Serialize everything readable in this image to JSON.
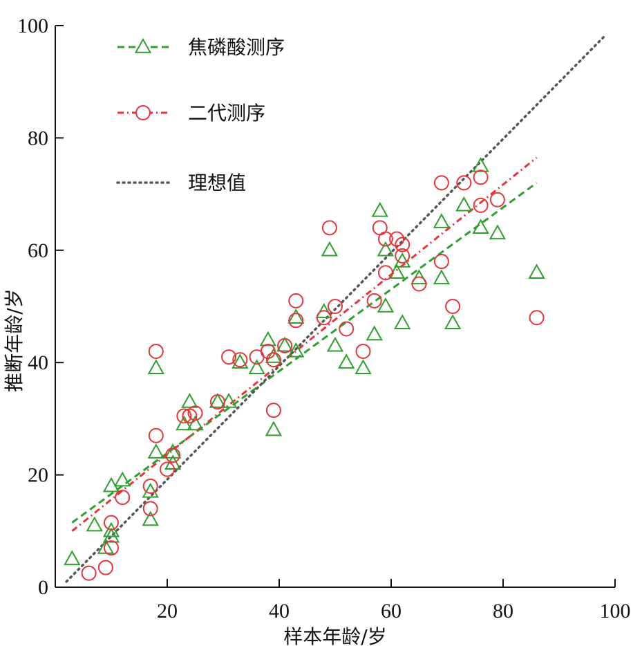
{
  "chart_data": {
    "type": "scatter",
    "xlabel": "样本年龄/岁",
    "ylabel": "推断年龄/岁",
    "xlim": [
      0,
      100
    ],
    "ylim": [
      0,
      100
    ],
    "xticks": [
      0,
      20,
      40,
      60,
      80,
      100
    ],
    "yticks": [
      0,
      20,
      40,
      60,
      80,
      100
    ],
    "grid": false,
    "legend_position": "top-left",
    "series": [
      {
        "name": "焦磷酸测序",
        "marker": "triangle",
        "color": "#2ca02c",
        "line_style": "dashed",
        "points": [
          [
            3,
            5
          ],
          [
            7,
            11
          ],
          [
            9,
            7
          ],
          [
            10,
            9
          ],
          [
            10,
            10
          ],
          [
            10,
            18
          ],
          [
            12,
            19
          ],
          [
            17,
            12
          ],
          [
            17,
            17
          ],
          [
            18,
            24
          ],
          [
            18,
            39
          ],
          [
            21,
            22
          ],
          [
            21,
            24
          ],
          [
            23,
            29
          ],
          [
            24,
            33
          ],
          [
            25,
            29
          ],
          [
            29,
            33
          ],
          [
            31,
            33
          ],
          [
            33,
            40
          ],
          [
            36,
            39
          ],
          [
            38,
            44
          ],
          [
            39,
            28
          ],
          [
            39,
            41
          ],
          [
            41,
            43
          ],
          [
            43,
            42
          ],
          [
            43,
            48
          ],
          [
            48,
            49
          ],
          [
            49,
            60
          ],
          [
            50,
            43
          ],
          [
            52,
            40
          ],
          [
            55,
            39
          ],
          [
            57,
            45
          ],
          [
            58,
            67
          ],
          [
            59,
            50
          ],
          [
            59,
            60
          ],
          [
            61,
            56
          ],
          [
            62,
            47
          ],
          [
            62,
            58
          ],
          [
            65,
            55
          ],
          [
            69,
            55
          ],
          [
            69,
            65
          ],
          [
            71,
            47
          ],
          [
            73,
            68
          ],
          [
            76,
            64
          ],
          [
            76,
            75
          ],
          [
            79,
            63
          ],
          [
            86,
            56
          ]
        ],
        "fit_line": [
          [
            3,
            11.5
          ],
          [
            86,
            72
          ]
        ]
      },
      {
        "name": "二代测序",
        "marker": "circle",
        "color": "#e8333a",
        "line_style": "dash-dot",
        "points": [
          [
            6,
            2.5
          ],
          [
            9,
            3.5
          ],
          [
            10,
            7
          ],
          [
            10,
            11.5
          ],
          [
            12,
            16
          ],
          [
            17,
            14
          ],
          [
            17,
            18
          ],
          [
            18,
            27
          ],
          [
            18,
            42
          ],
          [
            20,
            21
          ],
          [
            21,
            23.5
          ],
          [
            23,
            30.5
          ],
          [
            24,
            30.5
          ],
          [
            25,
            31
          ],
          [
            29,
            33
          ],
          [
            31,
            41
          ],
          [
            33,
            40.5
          ],
          [
            36,
            41
          ],
          [
            38,
            42
          ],
          [
            39,
            40.5
          ],
          [
            39,
            31.5
          ],
          [
            41,
            43
          ],
          [
            43,
            47.5
          ],
          [
            43,
            51
          ],
          [
            48,
            48
          ],
          [
            49,
            64
          ],
          [
            50,
            50
          ],
          [
            52,
            46
          ],
          [
            55,
            42
          ],
          [
            57,
            51
          ],
          [
            58,
            64
          ],
          [
            59,
            56
          ],
          [
            59,
            62
          ],
          [
            61,
            62
          ],
          [
            62,
            61
          ],
          [
            62,
            59
          ],
          [
            65,
            54
          ],
          [
            69,
            58
          ],
          [
            69,
            72
          ],
          [
            71,
            50
          ],
          [
            73,
            72
          ],
          [
            76,
            68
          ],
          [
            76,
            73
          ],
          [
            79,
            69
          ],
          [
            86,
            48
          ]
        ],
        "fit_line": [
          [
            3,
            10
          ],
          [
            86,
            76.5
          ]
        ]
      },
      {
        "name": "理想值",
        "marker": "none",
        "color": "#555555",
        "line_style": "dotted",
        "fit_line": [
          [
            2,
            1
          ],
          [
            98,
            98
          ]
        ]
      }
    ]
  }
}
